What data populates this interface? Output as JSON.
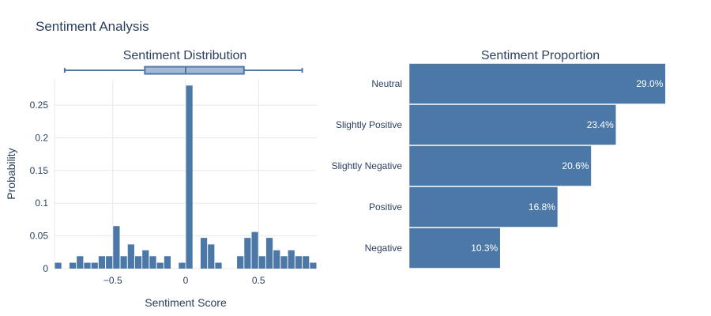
{
  "title": "Sentiment Analysis",
  "colors": {
    "bar": "#4c78a8",
    "box_fill": "#a5b8d6",
    "grid": "#e5e8ee",
    "text": "#2a3f5f"
  },
  "chart_data": [
    {
      "type": "histogram",
      "title": "Sentiment Distribution",
      "xlabel": "Sentiment Score",
      "ylabel": "Probability",
      "xlim": [
        -0.9,
        0.9
      ],
      "ylim": [
        0,
        0.29
      ],
      "bin_width": 0.05,
      "xticks": [
        {
          "v": -0.5,
          "label": "−0.5"
        },
        {
          "v": 0,
          "label": "0"
        },
        {
          "v": 0.5,
          "label": "0.5"
        }
      ],
      "yticks": [
        {
          "v": 0,
          "label": "0"
        },
        {
          "v": 0.05,
          "label": "0.05"
        },
        {
          "v": 0.1,
          "label": "0.1"
        },
        {
          "v": 0.15,
          "label": "0.15"
        },
        {
          "v": 0.2,
          "label": "0.2"
        },
        {
          "v": 0.25,
          "label": "0.25"
        }
      ],
      "grid": true,
      "bins": [
        {
          "x0": -0.9,
          "x1": -0.85,
          "y": 0.009
        },
        {
          "x0": -0.85,
          "x1": -0.8,
          "y": 0.0
        },
        {
          "x0": -0.8,
          "x1": -0.75,
          "y": 0.009
        },
        {
          "x0": -0.75,
          "x1": -0.7,
          "y": 0.019
        },
        {
          "x0": -0.7,
          "x1": -0.65,
          "y": 0.009
        },
        {
          "x0": -0.65,
          "x1": -0.6,
          "y": 0.009
        },
        {
          "x0": -0.6,
          "x1": -0.55,
          "y": 0.019
        },
        {
          "x0": -0.55,
          "x1": -0.5,
          "y": 0.019
        },
        {
          "x0": -0.5,
          "x1": -0.45,
          "y": 0.065
        },
        {
          "x0": -0.45,
          "x1": -0.4,
          "y": 0.019
        },
        {
          "x0": -0.4,
          "x1": -0.35,
          "y": 0.037
        },
        {
          "x0": -0.35,
          "x1": -0.3,
          "y": 0.019
        },
        {
          "x0": -0.3,
          "x1": -0.25,
          "y": 0.028
        },
        {
          "x0": -0.25,
          "x1": -0.2,
          "y": 0.019
        },
        {
          "x0": -0.2,
          "x1": -0.15,
          "y": 0.009
        },
        {
          "x0": -0.15,
          "x1": -0.1,
          "y": 0.019
        },
        {
          "x0": -0.1,
          "x1": -0.05,
          "y": 0.0
        },
        {
          "x0": -0.05,
          "x1": 0.0,
          "y": 0.009
        },
        {
          "x0": 0.0,
          "x1": 0.05,
          "y": 0.28
        },
        {
          "x0": 0.05,
          "x1": 0.1,
          "y": 0.0
        },
        {
          "x0": 0.1,
          "x1": 0.15,
          "y": 0.047
        },
        {
          "x0": 0.15,
          "x1": 0.2,
          "y": 0.037
        },
        {
          "x0": 0.2,
          "x1": 0.25,
          "y": 0.009
        },
        {
          "x0": 0.25,
          "x1": 0.3,
          "y": 0.0
        },
        {
          "x0": 0.3,
          "x1": 0.35,
          "y": 0.0
        },
        {
          "x0": 0.35,
          "x1": 0.4,
          "y": 0.019
        },
        {
          "x0": 0.4,
          "x1": 0.45,
          "y": 0.047
        },
        {
          "x0": 0.45,
          "x1": 0.5,
          "y": 0.056
        },
        {
          "x0": 0.5,
          "x1": 0.55,
          "y": 0.019
        },
        {
          "x0": 0.55,
          "x1": 0.6,
          "y": 0.047
        },
        {
          "x0": 0.6,
          "x1": 0.65,
          "y": 0.028
        },
        {
          "x0": 0.65,
          "x1": 0.7,
          "y": 0.019
        },
        {
          "x0": 0.7,
          "x1": 0.75,
          "y": 0.028
        },
        {
          "x0": 0.75,
          "x1": 0.8,
          "y": 0.019
        },
        {
          "x0": 0.8,
          "x1": 0.85,
          "y": 0.019
        },
        {
          "x0": 0.85,
          "x1": 0.9,
          "y": 0.009
        }
      ],
      "marginal_box": {
        "min": -0.83,
        "q1": -0.28,
        "median": 0.0,
        "q3": 0.4,
        "max": 0.8
      }
    },
    {
      "type": "bar",
      "orientation": "horizontal",
      "title": "Sentiment Proportion",
      "xlim": [
        0,
        29.5
      ],
      "categories": [
        "Neutral",
        "Slightly Positive",
        "Slightly Negative",
        "Positive",
        "Negative"
      ],
      "values": [
        29.0,
        23.4,
        20.6,
        16.8,
        10.3
      ],
      "labels": [
        "29.0%",
        "23.4%",
        "20.6%",
        "16.8%",
        "10.3%"
      ]
    }
  ]
}
